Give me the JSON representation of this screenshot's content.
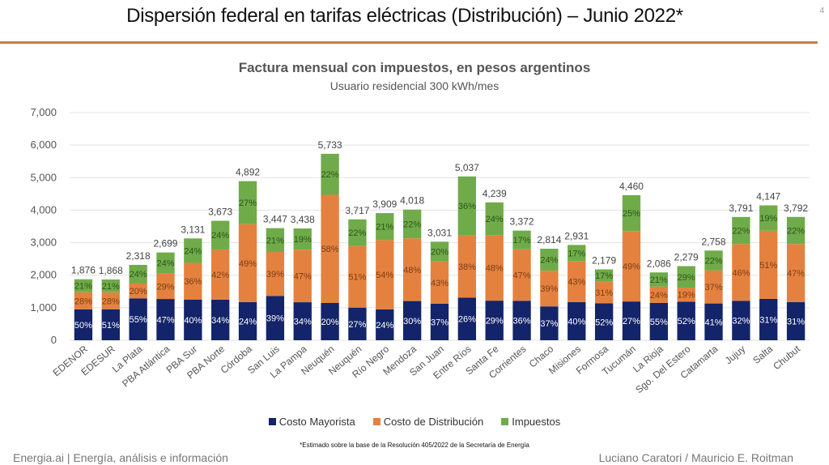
{
  "slide": {
    "title": "Dispersión federal en tarifas eléctricas (Distribución) – Junio 2022*",
    "page_number": "4",
    "footnote": "*Estimado sobre la base de la Resolución 405/2022 de la Secretaría de Energía",
    "footer_left": "Energia.ai | Energía, análisis e información",
    "footer_right": "Luciano Caratori / Mauricio E. Roitman",
    "accent_color": "#c97c4a"
  },
  "chart_data": {
    "type": "bar",
    "stacked": true,
    "title": "Factura mensual con impuestos, en pesos argentinos",
    "subtitle": "Usuario residencial 300 kWh/mes",
    "xlabel": "",
    "ylabel": "",
    "ylim": [
      0,
      7000
    ],
    "yticks": [
      0,
      1000,
      2000,
      3000,
      4000,
      5000,
      6000,
      7000
    ],
    "ytick_labels": [
      "0",
      "1,000",
      "2,000",
      "3,000",
      "4,000",
      "5,000",
      "6,000",
      "7,000"
    ],
    "grid": true,
    "legend_position": "bottom",
    "categories": [
      "EDENOR",
      "EDESUR",
      "La Plata",
      "PBA Atlántica",
      "PBA Sur",
      "PBA Norte",
      "Córdoba",
      "San Luis",
      "La Pampa",
      "Neuquén",
      "Neuquén",
      "Río Negro",
      "Mendoza",
      "San Juan",
      "Entre Ríos",
      "Santa Fe",
      "Corrientes",
      "Chaco",
      "Misiones",
      "Formosa",
      "Tucumán",
      "La Rioja",
      "Sgo. Del Estero",
      "Catamarta",
      "Jujuy",
      "Salta",
      "Chubut"
    ],
    "totals": [
      1876,
      1868,
      2318,
      2699,
      3131,
      3673,
      4892,
      3447,
      3438,
      5733,
      3717,
      3909,
      4018,
      3031,
      5037,
      4239,
      3372,
      2814,
      2931,
      2179,
      4460,
      2086,
      2279,
      2758,
      3791,
      4147,
      3792
    ],
    "total_labels": [
      "1,876",
      "1,868",
      "2,318",
      "2,699",
      "3,131",
      "3,673",
      "4,892",
      "3,447",
      "3,438",
      "5,733",
      "3,717",
      "3,909",
      "4,018",
      "3,031",
      "5,037",
      "4,239",
      "3,372",
      "2,814",
      "2,931",
      "2,179",
      "4,460",
      "2,086",
      "2,279",
      "2,758",
      "3,791",
      "4,147",
      "3,792"
    ],
    "series": [
      {
        "name": "Costo Mayorista",
        "color": "#13246a",
        "label_color": "#ffffff",
        "percent": [
          50,
          51,
          55,
          47,
          40,
          34,
          24,
          39,
          34,
          20,
          27,
          24,
          30,
          37,
          26,
          29,
          36,
          37,
          40,
          52,
          27,
          55,
          52,
          41,
          32,
          31,
          31
        ]
      },
      {
        "name": "Costo de Distribución",
        "color": "#e5813f",
        "label_color": "#7a3e14",
        "percent": [
          28,
          28,
          20,
          29,
          36,
          42,
          49,
          39,
          47,
          58,
          51,
          54,
          48,
          43,
          38,
          48,
          47,
          39,
          43,
          31,
          49,
          24,
          19,
          37,
          46,
          51,
          47
        ]
      },
      {
        "name": "Impuestos",
        "color": "#70ab4a",
        "label_color": "#2d5418",
        "percent": [
          21,
          21,
          24,
          24,
          24,
          24,
          27,
          21,
          19,
          22,
          22,
          21,
          22,
          20,
          36,
          24,
          17,
          24,
          17,
          17,
          25,
          21,
          29,
          22,
          22,
          19,
          22
        ]
      }
    ]
  }
}
